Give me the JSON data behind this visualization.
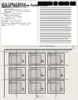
{
  "page_bg": "#f0ede8",
  "white": "#ffffff",
  "black": "#111111",
  "gray_text": "#555555",
  "light_gray": "#d8d4ce",
  "mid_gray": "#aaaaaa",
  "diagram_bg": "#e8e4de",
  "line_color": "#555555",
  "barcode_color": "#111111"
}
